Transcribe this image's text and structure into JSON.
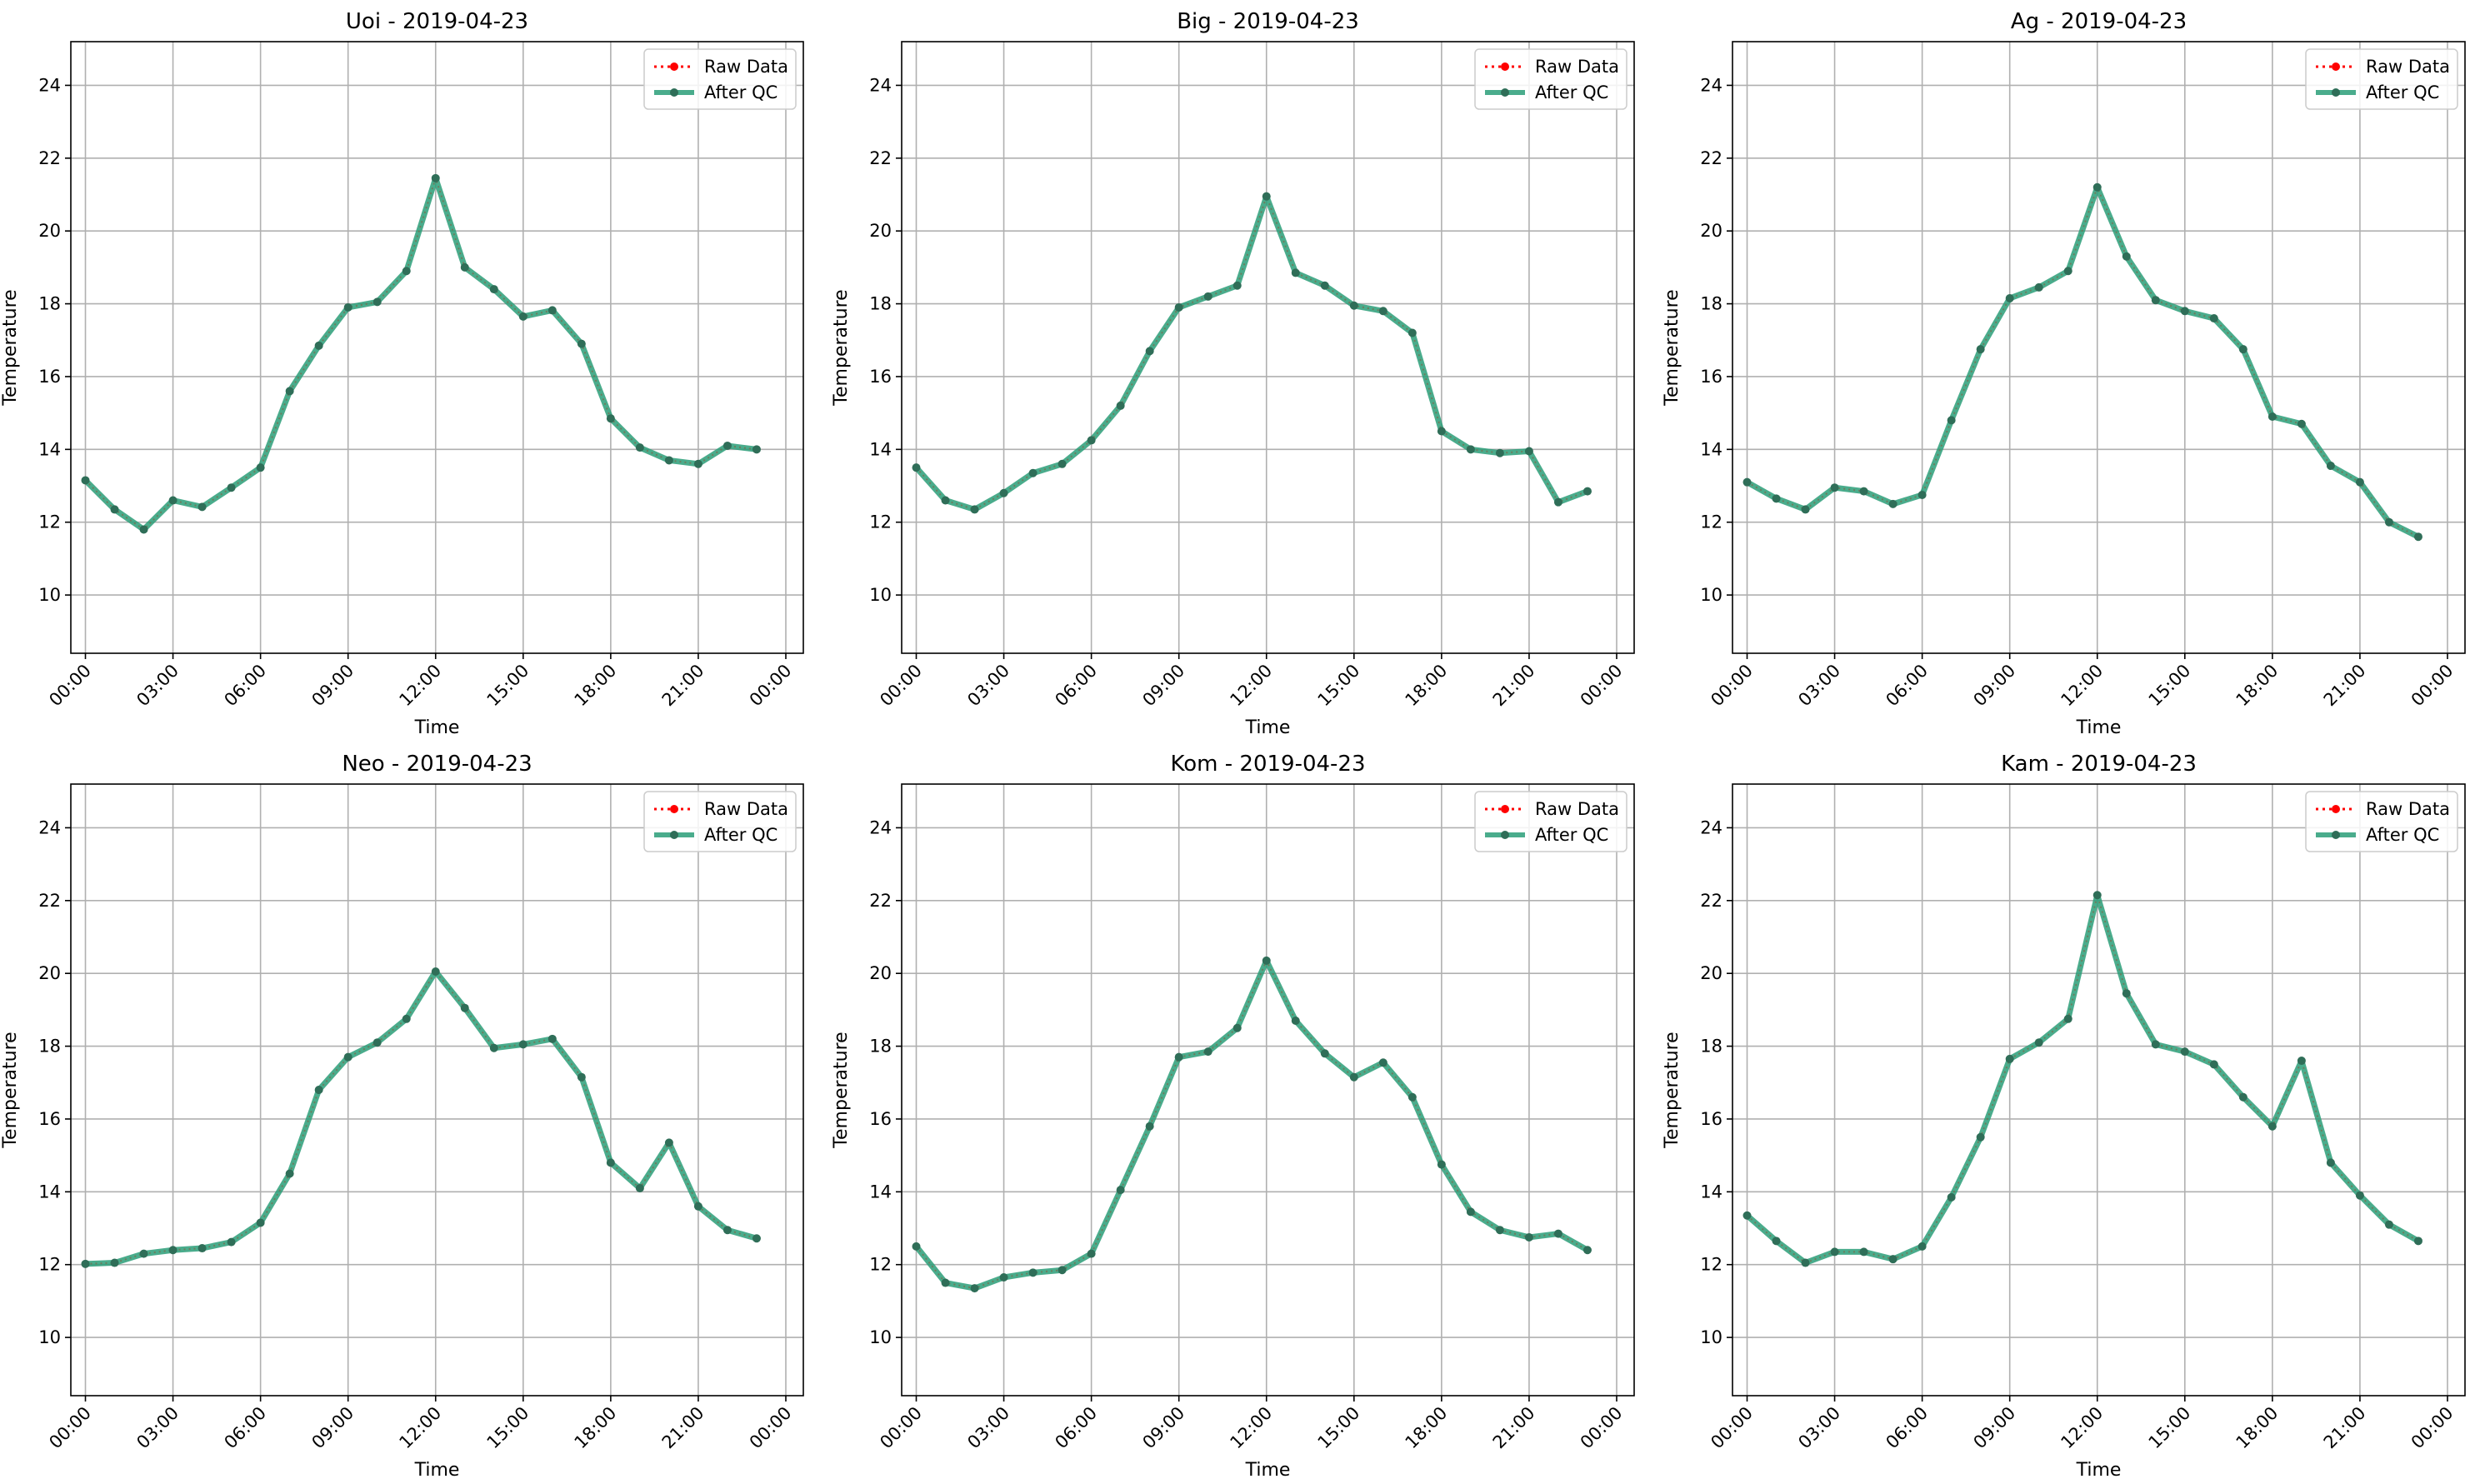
{
  "chart_data": [
    {
      "type": "line",
      "title": "Uoi - 2019-04-23",
      "xlabel": "Time",
      "ylabel": "Temperature",
      "x_ticks": [
        "00:00",
        "03:00",
        "06:00",
        "09:00",
        "12:00",
        "15:00",
        "18:00",
        "21:00",
        "00:00"
      ],
      "y_ticks": [
        10,
        12,
        14,
        16,
        18,
        20,
        22,
        24
      ],
      "ylim": [
        8.4,
        25.2
      ],
      "x": [
        "00:00",
        "01:00",
        "02:00",
        "03:00",
        "04:00",
        "05:00",
        "06:00",
        "07:00",
        "08:00",
        "09:00",
        "10:00",
        "11:00",
        "12:00",
        "13:00",
        "14:00",
        "15:00",
        "16:00",
        "17:00",
        "18:00",
        "19:00",
        "20:00",
        "21:00",
        "22:00",
        "23:00"
      ],
      "grid": true,
      "legend_position": "top-right",
      "series": [
        {
          "name": "Raw Data",
          "color": "#ff0000",
          "style": "dotted",
          "values": [
            13.15,
            12.35,
            11.8,
            12.6,
            12.42,
            12.95,
            13.5,
            15.6,
            16.85,
            17.9,
            18.05,
            18.9,
            21.45,
            19.0,
            18.4,
            17.65,
            17.82,
            16.9,
            14.85,
            14.05,
            13.7,
            13.6,
            14.1,
            14.0
          ]
        },
        {
          "name": "After QC",
          "color": "#2a9d78",
          "style": "solid",
          "values": [
            13.15,
            12.35,
            11.8,
            12.6,
            12.42,
            12.95,
            13.5,
            15.6,
            16.85,
            17.9,
            18.05,
            18.9,
            21.45,
            19.0,
            18.4,
            17.65,
            17.82,
            16.9,
            14.85,
            14.05,
            13.7,
            13.6,
            14.1,
            14.0
          ]
        }
      ]
    },
    {
      "type": "line",
      "title": "Big - 2019-04-23",
      "xlabel": "Time",
      "ylabel": "Temperature",
      "x_ticks": [
        "00:00",
        "03:00",
        "06:00",
        "09:00",
        "12:00",
        "15:00",
        "18:00",
        "21:00",
        "00:00"
      ],
      "y_ticks": [
        10,
        12,
        14,
        16,
        18,
        20,
        22,
        24
      ],
      "ylim": [
        8.4,
        25.2
      ],
      "x": [
        "00:00",
        "01:00",
        "02:00",
        "03:00",
        "04:00",
        "05:00",
        "06:00",
        "07:00",
        "08:00",
        "09:00",
        "10:00",
        "11:00",
        "12:00",
        "13:00",
        "14:00",
        "15:00",
        "16:00",
        "17:00",
        "18:00",
        "19:00",
        "20:00",
        "21:00",
        "22:00",
        "23:00"
      ],
      "grid": true,
      "legend_position": "top-right",
      "series": [
        {
          "name": "Raw Data",
          "color": "#ff0000",
          "style": "dotted",
          "values": [
            13.5,
            12.6,
            12.35,
            12.8,
            13.35,
            13.6,
            14.25,
            15.2,
            16.7,
            17.9,
            18.2,
            18.5,
            20.95,
            18.85,
            18.5,
            17.95,
            17.8,
            17.2,
            14.5,
            14.0,
            13.9,
            13.95,
            12.55,
            12.85
          ]
        },
        {
          "name": "After QC",
          "color": "#2a9d78",
          "style": "solid",
          "values": [
            13.5,
            12.6,
            12.35,
            12.8,
            13.35,
            13.6,
            14.25,
            15.2,
            16.7,
            17.9,
            18.2,
            18.5,
            20.95,
            18.85,
            18.5,
            17.95,
            17.8,
            17.2,
            14.5,
            14.0,
            13.9,
            13.95,
            12.55,
            12.85
          ]
        }
      ]
    },
    {
      "type": "line",
      "title": "Ag - 2019-04-23",
      "xlabel": "Time",
      "ylabel": "Temperature",
      "x_ticks": [
        "00:00",
        "03:00",
        "06:00",
        "09:00",
        "12:00",
        "15:00",
        "18:00",
        "21:00",
        "00:00"
      ],
      "y_ticks": [
        10,
        12,
        14,
        16,
        18,
        20,
        22,
        24
      ],
      "ylim": [
        8.4,
        25.2
      ],
      "x": [
        "00:00",
        "01:00",
        "02:00",
        "03:00",
        "04:00",
        "05:00",
        "06:00",
        "07:00",
        "08:00",
        "09:00",
        "10:00",
        "11:00",
        "12:00",
        "13:00",
        "14:00",
        "15:00",
        "16:00",
        "17:00",
        "18:00",
        "19:00",
        "20:00",
        "21:00",
        "22:00",
        "23:00"
      ],
      "grid": true,
      "legend_position": "top-right",
      "series": [
        {
          "name": "Raw Data",
          "color": "#ff0000",
          "style": "dotted",
          "values": [
            13.1,
            12.65,
            12.35,
            12.95,
            12.85,
            12.5,
            12.75,
            14.8,
            16.75,
            18.15,
            18.45,
            18.9,
            21.2,
            19.3,
            18.1,
            17.8,
            17.6,
            16.75,
            14.9,
            14.7,
            13.55,
            13.1,
            12.0,
            11.6
          ]
        },
        {
          "name": "After QC",
          "color": "#2a9d78",
          "style": "solid",
          "values": [
            13.1,
            12.65,
            12.35,
            12.95,
            12.85,
            12.5,
            12.75,
            14.8,
            16.75,
            18.15,
            18.45,
            18.9,
            21.2,
            19.3,
            18.1,
            17.8,
            17.6,
            16.75,
            14.9,
            14.7,
            13.55,
            13.1,
            12.0,
            11.6
          ]
        }
      ]
    },
    {
      "type": "line",
      "title": "Neo - 2019-04-23",
      "xlabel": "Time",
      "ylabel": "Temperature",
      "x_ticks": [
        "00:00",
        "03:00",
        "06:00",
        "09:00",
        "12:00",
        "15:00",
        "18:00",
        "21:00",
        "00:00"
      ],
      "y_ticks": [
        10,
        12,
        14,
        16,
        18,
        20,
        22,
        24
      ],
      "ylim": [
        8.4,
        25.2
      ],
      "x": [
        "00:00",
        "01:00",
        "02:00",
        "03:00",
        "04:00",
        "05:00",
        "06:00",
        "07:00",
        "08:00",
        "09:00",
        "10:00",
        "11:00",
        "12:00",
        "13:00",
        "14:00",
        "15:00",
        "16:00",
        "17:00",
        "18:00",
        "19:00",
        "20:00",
        "21:00",
        "22:00",
        "23:00"
      ],
      "grid": true,
      "legend_position": "top-right",
      "series": [
        {
          "name": "Raw Data",
          "color": "#ff0000",
          "style": "dotted",
          "values": [
            12.02,
            12.05,
            12.3,
            12.4,
            12.45,
            12.62,
            13.15,
            14.5,
            16.8,
            17.7,
            18.1,
            18.75,
            20.05,
            19.05,
            17.95,
            18.05,
            18.2,
            17.15,
            14.8,
            14.1,
            15.35,
            13.6,
            12.95,
            12.72
          ]
        },
        {
          "name": "After QC",
          "color": "#2a9d78",
          "style": "solid",
          "values": [
            12.02,
            12.05,
            12.3,
            12.4,
            12.45,
            12.62,
            13.15,
            14.5,
            16.8,
            17.7,
            18.1,
            18.75,
            20.05,
            19.05,
            17.95,
            18.05,
            18.2,
            17.15,
            14.8,
            14.1,
            15.35,
            13.6,
            12.95,
            12.72
          ]
        }
      ]
    },
    {
      "type": "line",
      "title": "Kom - 2019-04-23",
      "xlabel": "Time",
      "ylabel": "Temperature",
      "x_ticks": [
        "00:00",
        "03:00",
        "06:00",
        "09:00",
        "12:00",
        "15:00",
        "18:00",
        "21:00",
        "00:00"
      ],
      "y_ticks": [
        10,
        12,
        14,
        16,
        18,
        20,
        22,
        24
      ],
      "ylim": [
        8.4,
        25.2
      ],
      "x": [
        "00:00",
        "01:00",
        "02:00",
        "03:00",
        "04:00",
        "05:00",
        "06:00",
        "07:00",
        "08:00",
        "09:00",
        "10:00",
        "11:00",
        "12:00",
        "13:00",
        "14:00",
        "15:00",
        "16:00",
        "17:00",
        "18:00",
        "19:00",
        "20:00",
        "21:00",
        "22:00",
        "23:00"
      ],
      "grid": true,
      "legend_position": "top-right",
      "series": [
        {
          "name": "Raw Data",
          "color": "#ff0000",
          "style": "dotted",
          "values": [
            12.5,
            11.5,
            11.35,
            11.65,
            11.78,
            11.85,
            12.3,
            14.05,
            15.8,
            17.7,
            17.85,
            18.5,
            20.35,
            18.7,
            17.8,
            17.15,
            17.55,
            16.6,
            14.75,
            13.45,
            12.95,
            12.75,
            12.85,
            12.4
          ]
        },
        {
          "name": "After QC",
          "color": "#2a9d78",
          "style": "solid",
          "values": [
            12.5,
            11.5,
            11.35,
            11.65,
            11.78,
            11.85,
            12.3,
            14.05,
            15.8,
            17.7,
            17.85,
            18.5,
            20.35,
            18.7,
            17.8,
            17.15,
            17.55,
            16.6,
            14.75,
            13.45,
            12.95,
            12.75,
            12.85,
            12.4
          ]
        }
      ]
    },
    {
      "type": "line",
      "title": "Kam - 2019-04-23",
      "xlabel": "Time",
      "ylabel": "Temperature",
      "x_ticks": [
        "00:00",
        "03:00",
        "06:00",
        "09:00",
        "12:00",
        "15:00",
        "18:00",
        "21:00",
        "00:00"
      ],
      "y_ticks": [
        10,
        12,
        14,
        16,
        18,
        20,
        22,
        24
      ],
      "ylim": [
        8.4,
        25.2
      ],
      "x": [
        "00:00",
        "01:00",
        "02:00",
        "03:00",
        "04:00",
        "05:00",
        "06:00",
        "07:00",
        "08:00",
        "09:00",
        "10:00",
        "11:00",
        "12:00",
        "13:00",
        "14:00",
        "15:00",
        "16:00",
        "17:00",
        "18:00",
        "19:00",
        "20:00",
        "21:00",
        "22:00",
        "23:00"
      ],
      "grid": true,
      "legend_position": "top-right",
      "series": [
        {
          "name": "Raw Data",
          "color": "#ff0000",
          "style": "dotted",
          "values": [
            13.35,
            12.65,
            12.05,
            12.35,
            12.35,
            12.15,
            12.5,
            13.85,
            15.5,
            17.65,
            18.1,
            18.75,
            22.15,
            19.45,
            18.05,
            17.85,
            17.5,
            16.6,
            15.8,
            17.6,
            14.8,
            13.9,
            13.1,
            12.65
          ]
        },
        {
          "name": "After QC",
          "color": "#2a9d78",
          "style": "solid",
          "values": [
            13.35,
            12.65,
            12.05,
            12.35,
            12.35,
            12.15,
            12.5,
            13.85,
            15.5,
            17.65,
            18.1,
            18.75,
            22.15,
            19.45,
            18.05,
            17.85,
            17.5,
            16.6,
            15.8,
            17.6,
            14.8,
            13.9,
            13.1,
            12.65
          ]
        }
      ]
    }
  ]
}
